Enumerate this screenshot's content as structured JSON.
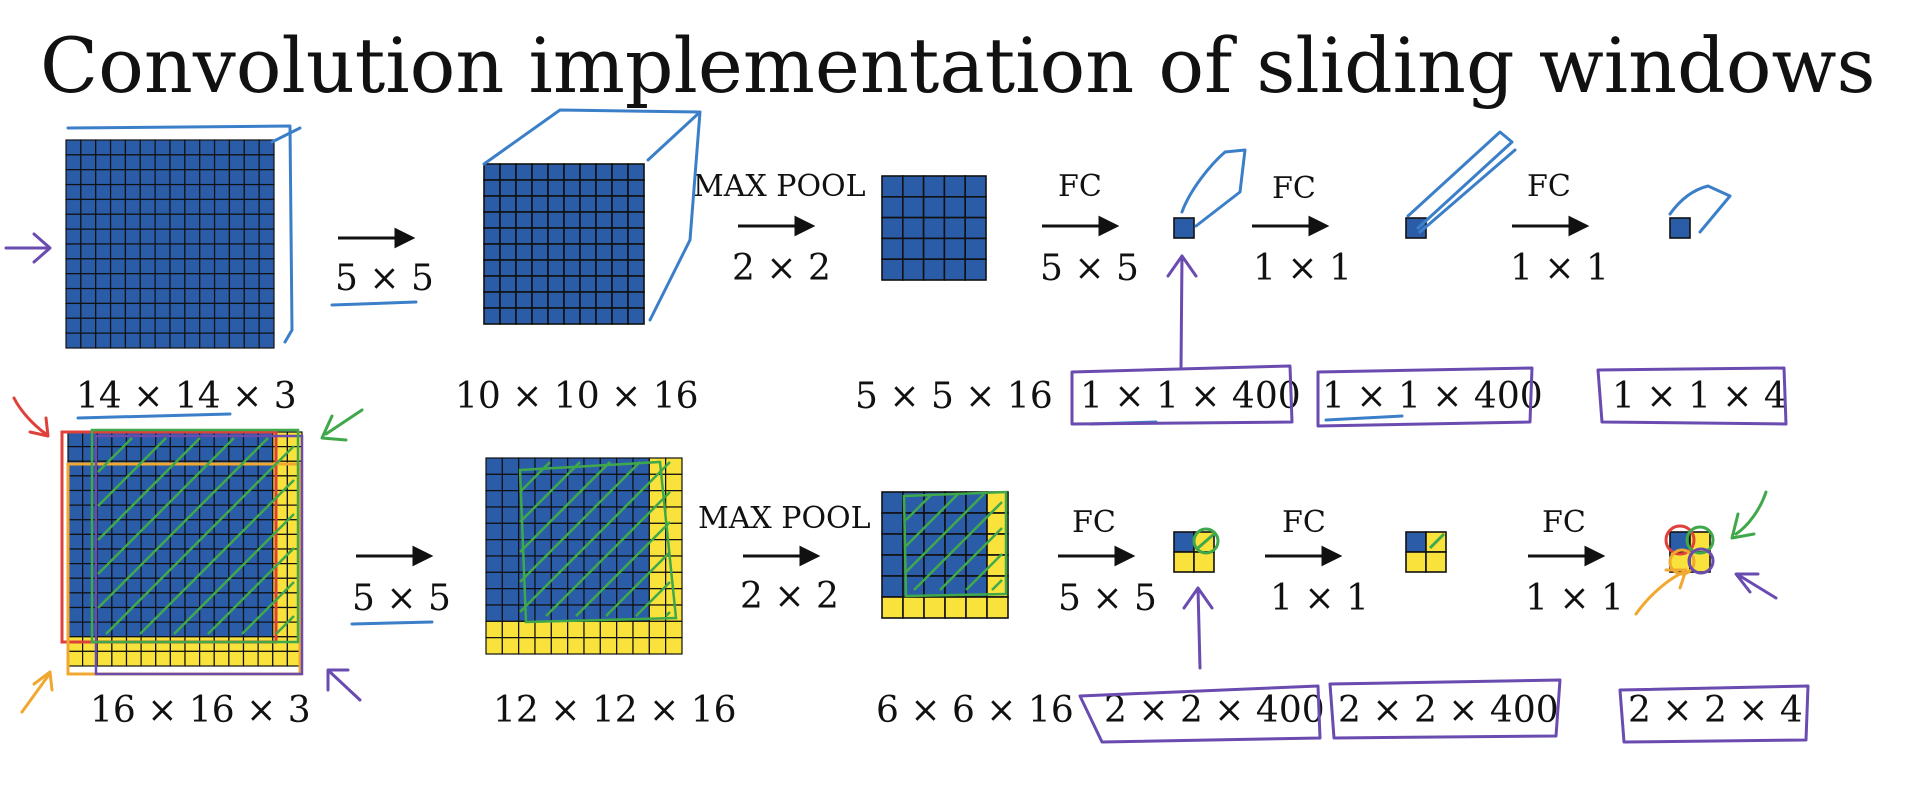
{
  "title": "Convolution implementation of sliding windows",
  "colors": {
    "blue": "#2A5CA8",
    "yellow": "#F9E23C",
    "grid_line": "#111111",
    "ink_blue": "#3C7FC9",
    "ink_purple": "#6A4BB0",
    "ink_green": "#3FA84A",
    "ink_red": "#E0403A",
    "ink_orange": "#F0A830"
  },
  "top_row": {
    "input_dims": "14 × 14  × 3",
    "conv_op": "5 × 5",
    "conv_dims": "10 × 10 × 16",
    "pool_label": "MAX POOL",
    "pool_op": "2 × 2",
    "pool_dims": "5 × 5 × 16",
    "fc1_label": "FC",
    "fc1_op": "5 × 5",
    "fc1_dims": "1 × 1 × 400",
    "fc2_label": "FC",
    "fc2_op": "1 × 1",
    "fc2_dims": "1 × 1 × 400",
    "fc3_label": "FC",
    "fc3_op": "1 × 1",
    "out_dims": "1 × 1 × 4"
  },
  "bottom_row": {
    "input_dims": "16 × 16 × 3",
    "conv_op": "5 × 5",
    "conv_dims": "12 × 12 × 16",
    "pool_label": "MAX POOL",
    "pool_op": "2 × 2",
    "pool_dims": "6 × 6 × 16",
    "fc1_label": "FC",
    "fc1_op": "5 × 5",
    "fc1_dims": "2 × 2 × 400",
    "fc2_label": "FC",
    "fc2_op": "1 × 1",
    "fc2_dims": "2 × 2 × 400",
    "fc3_label": "FC",
    "fc3_op": "1 × 1",
    "out_dims": "2 × 2 × 4"
  }
}
